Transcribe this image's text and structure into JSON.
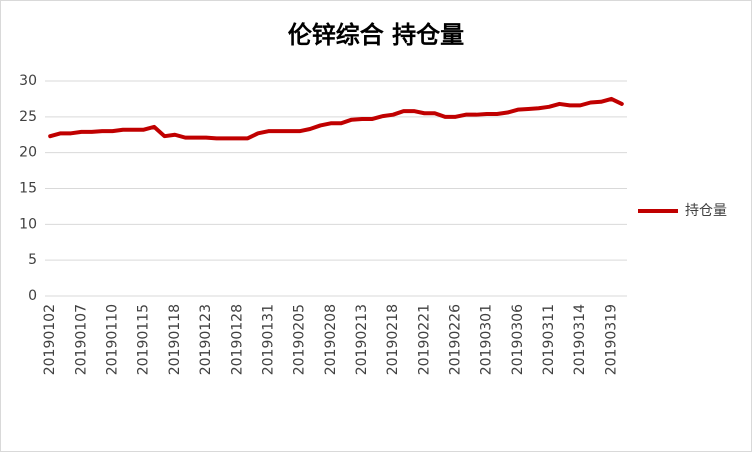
{
  "chart_data": {
    "type": "line",
    "title": "伦锌综合 持仓量",
    "categories": [
      "20190102",
      null,
      null,
      "20190107",
      null,
      null,
      "20190110",
      null,
      null,
      "20190115",
      null,
      null,
      "20190118",
      null,
      null,
      "20190123",
      null,
      null,
      "20190128",
      null,
      null,
      "20190131",
      null,
      null,
      "20190205",
      null,
      null,
      "20190208",
      null,
      null,
      "20190213",
      null,
      null,
      "20190218",
      null,
      null,
      "20190221",
      null,
      null,
      "20190226",
      null,
      null,
      "20190301",
      null,
      null,
      "20190306",
      null,
      null,
      "20190311",
      null,
      null,
      "20190314",
      null,
      null,
      "20190319",
      null
    ],
    "series": [
      {
        "name": "持仓量",
        "color": "#c00000",
        "values": [
          22.3,
          22.7,
          22.7,
          22.9,
          22.9,
          23.0,
          23.0,
          23.2,
          23.2,
          23.2,
          23.6,
          22.3,
          22.5,
          22.1,
          22.1,
          22.1,
          22.0,
          22.0,
          22.0,
          22.0,
          22.7,
          23.0,
          23.0,
          23.0,
          23.0,
          23.3,
          23.8,
          24.1,
          24.1,
          24.6,
          24.7,
          24.7,
          25.1,
          25.3,
          25.8,
          25.8,
          25.5,
          25.5,
          25.0,
          25.0,
          25.3,
          25.3,
          25.4,
          25.4,
          25.6,
          26.0,
          26.1,
          26.2,
          26.4,
          26.8,
          26.6,
          26.6,
          27.0,
          27.1,
          27.5,
          26.8
        ]
      }
    ],
    "ylim": [
      0,
      30
    ],
    "yticks": [
      0,
      5,
      10,
      15,
      20,
      25,
      30
    ],
    "grid": true,
    "legend": "right"
  }
}
